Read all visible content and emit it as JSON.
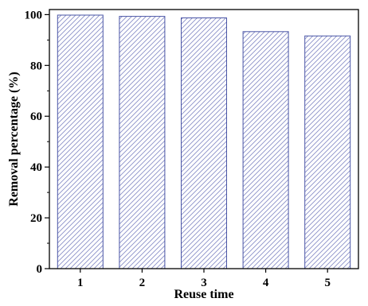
{
  "chart_data": {
    "type": "bar",
    "categories": [
      "1",
      "2",
      "3",
      "4",
      "5"
    ],
    "values": [
      99.8,
      99.3,
      98.7,
      93.3,
      91.6
    ],
    "title": "",
    "xlabel": "Reuse time",
    "ylabel": "Removal percentage (%)",
    "ylim": [
      0,
      102
    ],
    "yticks": [
      0,
      20,
      40,
      60,
      80,
      100
    ],
    "bar_fill": "hatched",
    "bar_color": "#4a55a6",
    "hatch_color": "#8a90c8",
    "grid": false,
    "legend": "none"
  }
}
